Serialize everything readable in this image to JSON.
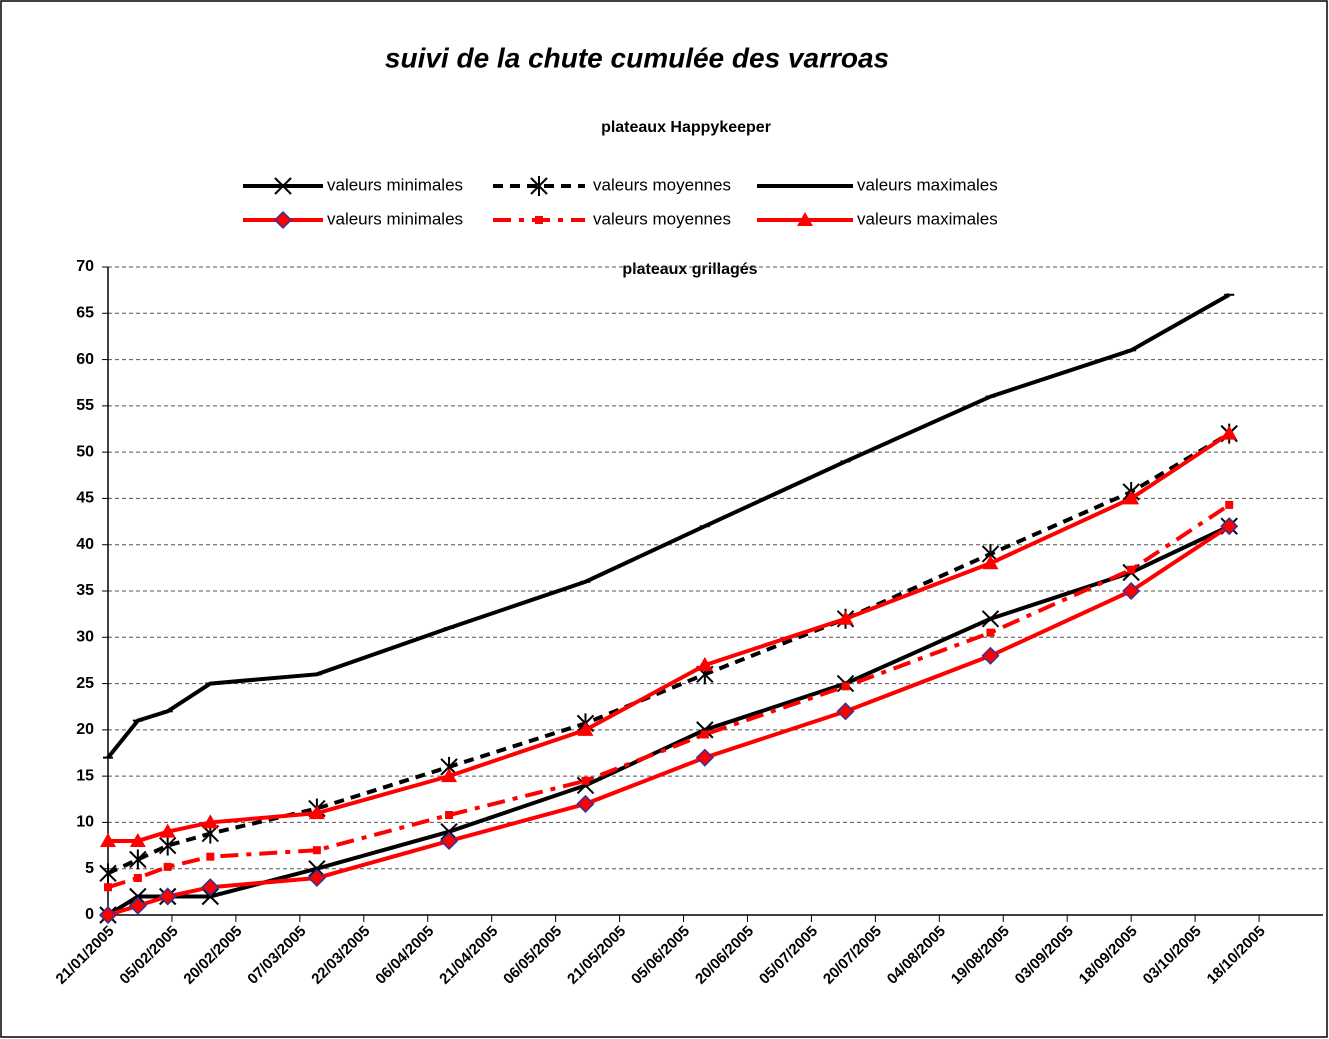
{
  "chart_data": {
    "type": "line",
    "title": "suivi de la chute cumulée des varroas",
    "legend_titles": [
      "plateaux Happykeeper",
      "plateaux grillagés"
    ],
    "x": [
      "2005-01-21",
      "2005-01-28",
      "2005-02-04",
      "2005-02-14",
      "2005-03-11",
      "2005-04-11",
      "2005-05-13",
      "2005-06-10",
      "2005-07-13",
      "2005-08-16",
      "2005-09-18",
      "2005-10-11"
    ],
    "series": [
      {
        "name": "valeurs minimales",
        "color": "#000000",
        "dash": "solid",
        "marker": "x",
        "values": [
          0,
          2,
          2,
          2,
          5,
          9,
          14,
          20,
          25,
          32,
          37,
          42
        ]
      },
      {
        "name": "valeurs moyennes",
        "color": "#000000",
        "dash": "dash",
        "marker": "star",
        "values": [
          4.5,
          6,
          7.5,
          8.8,
          11.5,
          16,
          20.7,
          26,
          32,
          39,
          45.7,
          52
        ]
      },
      {
        "name": "valeurs maximales",
        "color": "#000000",
        "dash": "solid",
        "marker": "dash",
        "values": [
          17,
          21,
          22,
          25,
          26,
          31,
          36,
          42,
          49,
          56,
          61,
          67
        ]
      },
      {
        "name": "valeurs minimales",
        "color": "#ff0000",
        "dash": "solid",
        "marker": "diamond",
        "marker_edge": "#333399",
        "values": [
          0,
          1,
          2,
          3,
          4,
          8,
          12,
          17,
          22,
          28,
          35,
          42
        ]
      },
      {
        "name": "valeurs moyennes",
        "color": "#ff0000",
        "dash": "dashdot",
        "marker": "square",
        "values": [
          3,
          4,
          5.2,
          6.3,
          7,
          10.8,
          14.5,
          19.5,
          24.7,
          30.5,
          37.3,
          44.3
        ]
      },
      {
        "name": "valeurs maximales",
        "color": "#ff0000",
        "dash": "solid",
        "marker": "triangle",
        "values": [
          8,
          8,
          9,
          10,
          11,
          15,
          20,
          27,
          32,
          38,
          45,
          52
        ]
      }
    ],
    "xlim": [
      "2005-01-21",
      "2005-11-02"
    ],
    "xticks": [
      {
        "value": "2005-01-21",
        "label": "21/01/2005"
      },
      {
        "value": "2005-02-05",
        "label": "05/02/2005"
      },
      {
        "value": "2005-02-20",
        "label": "20/02/2005"
      },
      {
        "value": "2005-03-07",
        "label": "07/03/2005"
      },
      {
        "value": "2005-03-22",
        "label": "22/03/2005"
      },
      {
        "value": "2005-04-06",
        "label": "06/04/2005"
      },
      {
        "value": "2005-04-21",
        "label": "21/04/2005"
      },
      {
        "value": "2005-05-06",
        "label": "06/05/2005"
      },
      {
        "value": "2005-05-21",
        "label": "21/05/2005"
      },
      {
        "value": "2005-06-05",
        "label": "05/06/2005"
      },
      {
        "value": "2005-06-20",
        "label": "20/06/2005"
      },
      {
        "value": "2005-07-05",
        "label": "05/07/2005"
      },
      {
        "value": "2005-07-20",
        "label": "20/07/2005"
      },
      {
        "value": "2005-08-04",
        "label": "04/08/2005"
      },
      {
        "value": "2005-08-19",
        "label": "19/08/2005"
      },
      {
        "value": "2005-09-03",
        "label": "03/09/2005"
      },
      {
        "value": "2005-09-18",
        "label": "18/09/2005"
      },
      {
        "value": "2005-10-03",
        "label": "03/10/2005"
      },
      {
        "value": "2005-10-18",
        "label": "18/10/2005"
      }
    ],
    "ylim": [
      0,
      70
    ],
    "yticks": [
      0,
      5,
      10,
      15,
      20,
      25,
      30,
      35,
      40,
      45,
      50,
      55,
      60,
      65,
      70
    ],
    "grid": true
  }
}
